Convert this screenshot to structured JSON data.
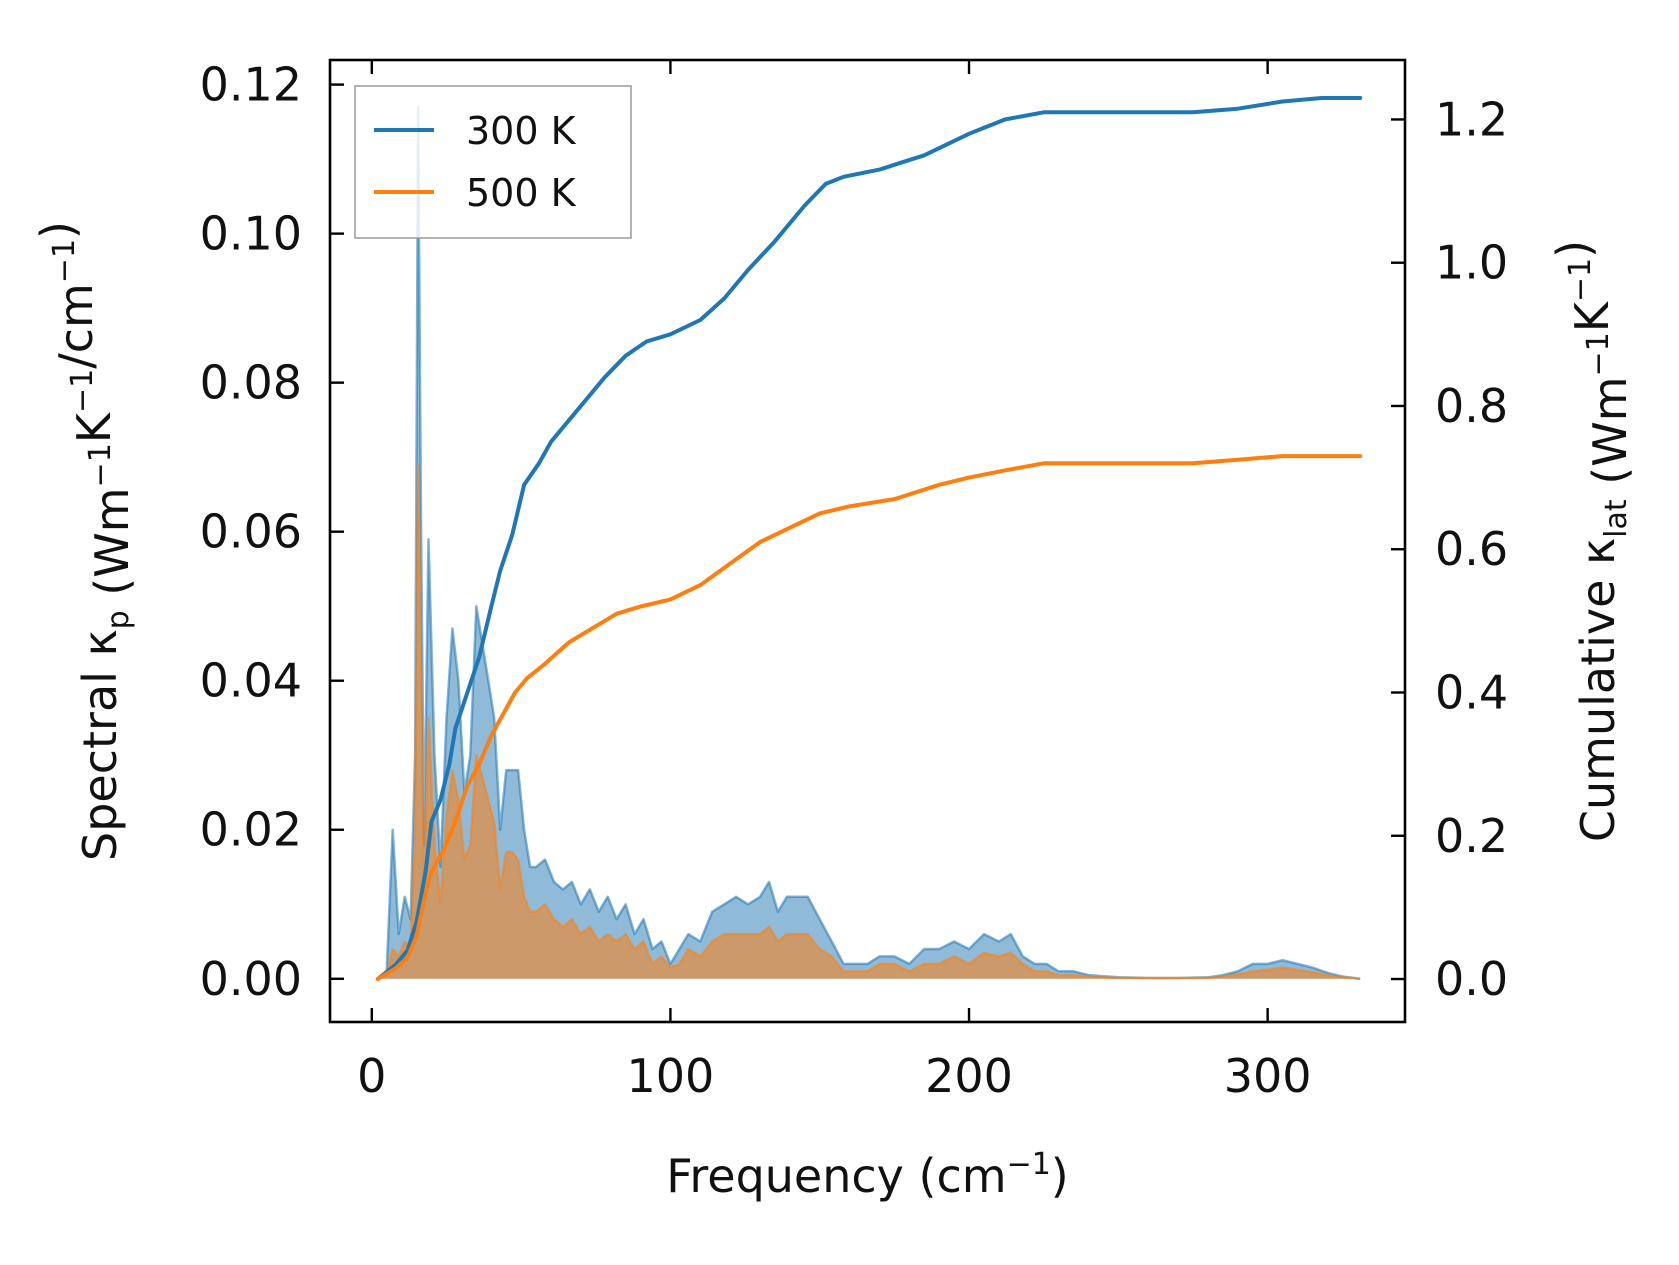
{
  "chart_data": {
    "type": "line",
    "xlabel": {
      "main": "Frequency (cm",
      "sup": "−1",
      "tail": ")"
    },
    "ylabel_left": [
      {
        "t": "Spectral κ"
      },
      {
        "t": "p",
        "sub": true
      },
      {
        "t": " (Wm"
      },
      {
        "t": "−1",
        "sup": true
      },
      {
        "t": "K"
      },
      {
        "t": "−1",
        "sup": true
      },
      {
        "t": "/cm"
      },
      {
        "t": "−1",
        "sup": true
      },
      {
        "t": ")"
      }
    ],
    "ylabel_right": [
      {
        "t": "Cumulative κ"
      },
      {
        "t": "lat",
        "sub": true
      },
      {
        "t": " (Wm"
      },
      {
        "t": "−1",
        "sup": true
      },
      {
        "t": "K"
      },
      {
        "t": "−1",
        "sup": true
      },
      {
        "t": ")"
      }
    ],
    "xlim": [
      -14,
      346
    ],
    "ylim_left": [
      -0.0058,
      0.1233
    ],
    "ylim_right": [
      -0.06,
      1.283
    ],
    "x_ticks": [
      0,
      100,
      200,
      300
    ],
    "x_tick_labels": [
      "0",
      "100",
      "200",
      "300"
    ],
    "y_left_ticks": [
      0,
      0.02,
      0.04,
      0.06,
      0.08,
      0.1,
      0.12
    ],
    "y_left_tick_labels": [
      "0.00",
      "0.02",
      "0.04",
      "0.06",
      "0.08",
      "0.10",
      "0.12"
    ],
    "y_right_ticks": [
      0,
      0.2,
      0.4,
      0.6,
      0.8,
      1.0,
      1.2
    ],
    "y_right_tick_labels": [
      "0.0",
      "0.2",
      "0.4",
      "0.6",
      "0.8",
      "1.0",
      "1.2"
    ],
    "legend_position": "top-left",
    "grid": false,
    "series": [
      {
        "name": "300 K",
        "color": "#1f77b4",
        "cumulative": [
          [
            2,
            0
          ],
          [
            8,
            0.02
          ],
          [
            12,
            0.04
          ],
          [
            15,
            0.08
          ],
          [
            18,
            0.15
          ],
          [
            20,
            0.22
          ],
          [
            23,
            0.25
          ],
          [
            26,
            0.3
          ],
          [
            28,
            0.35
          ],
          [
            32,
            0.4
          ],
          [
            36,
            0.45
          ],
          [
            40,
            0.52
          ],
          [
            43,
            0.57
          ],
          [
            47,
            0.62
          ],
          [
            51,
            0.69
          ],
          [
            56,
            0.72
          ],
          [
            60,
            0.75
          ],
          [
            66,
            0.78
          ],
          [
            72,
            0.81
          ],
          [
            78,
            0.84
          ],
          [
            85,
            0.87
          ],
          [
            92,
            0.89
          ],
          [
            100,
            0.9
          ],
          [
            110,
            0.92
          ],
          [
            118,
            0.95
          ],
          [
            126,
            0.99
          ],
          [
            135,
            1.03
          ],
          [
            145,
            1.08
          ],
          [
            152,
            1.11
          ],
          [
            158,
            1.12
          ],
          [
            170,
            1.13
          ],
          [
            185,
            1.15
          ],
          [
            200,
            1.18
          ],
          [
            212,
            1.2
          ],
          [
            225,
            1.21
          ],
          [
            250,
            1.21
          ],
          [
            275,
            1.21
          ],
          [
            290,
            1.215
          ],
          [
            305,
            1.225
          ],
          [
            318,
            1.23
          ],
          [
            331,
            1.23
          ]
        ],
        "spectral": [
          [
            2,
            0
          ],
          [
            5,
            0.001
          ],
          [
            7,
            0.02
          ],
          [
            9,
            0.006
          ],
          [
            11,
            0.011
          ],
          [
            13,
            0.008
          ],
          [
            14.5,
            0.03
          ],
          [
            15.5,
            0.117
          ],
          [
            16.5,
            0.06
          ],
          [
            17.5,
            0.018
          ],
          [
            19,
            0.059
          ],
          [
            21,
            0.03
          ],
          [
            23,
            0.015
          ],
          [
            25,
            0.035
          ],
          [
            27,
            0.047
          ],
          [
            29,
            0.04
          ],
          [
            31,
            0.025
          ],
          [
            33,
            0.03
          ],
          [
            35,
            0.05
          ],
          [
            37,
            0.045
          ],
          [
            39,
            0.04
          ],
          [
            41,
            0.035
          ],
          [
            43,
            0.02
          ],
          [
            45,
            0.028
          ],
          [
            47,
            0.028
          ],
          [
            49,
            0.028
          ],
          [
            51,
            0.02
          ],
          [
            53,
            0.015
          ],
          [
            55,
            0.015
          ],
          [
            58,
            0.016
          ],
          [
            61,
            0.013
          ],
          [
            64,
            0.012
          ],
          [
            67,
            0.013
          ],
          [
            70,
            0.01
          ],
          [
            73,
            0.012
          ],
          [
            76,
            0.009
          ],
          [
            79,
            0.011
          ],
          [
            82,
            0.008
          ],
          [
            85,
            0.01
          ],
          [
            88,
            0.006
          ],
          [
            91,
            0.008
          ],
          [
            94,
            0.004
          ],
          [
            97,
            0.005
          ],
          [
            100,
            0.002
          ],
          [
            103,
            0.004
          ],
          [
            106,
            0.006
          ],
          [
            110,
            0.005
          ],
          [
            114,
            0.009
          ],
          [
            118,
            0.01
          ],
          [
            122,
            0.011
          ],
          [
            126,
            0.01
          ],
          [
            130,
            0.011
          ],
          [
            133,
            0.013
          ],
          [
            136,
            0.009
          ],
          [
            139,
            0.011
          ],
          [
            142,
            0.011
          ],
          [
            146,
            0.011
          ],
          [
            150,
            0.008
          ],
          [
            154,
            0.005
          ],
          [
            158,
            0.002
          ],
          [
            162,
            0.002
          ],
          [
            166,
            0.002
          ],
          [
            170,
            0.003
          ],
          [
            175,
            0.003
          ],
          [
            180,
            0.002
          ],
          [
            185,
            0.004
          ],
          [
            190,
            0.004
          ],
          [
            195,
            0.005
          ],
          [
            200,
            0.004
          ],
          [
            205,
            0.006
          ],
          [
            210,
            0.005
          ],
          [
            214,
            0.006
          ],
          [
            218,
            0.003
          ],
          [
            222,
            0.002
          ],
          [
            226,
            0.002
          ],
          [
            230,
            0.001
          ],
          [
            235,
            0.001
          ],
          [
            240,
            0.0005
          ],
          [
            250,
            0.0002
          ],
          [
            260,
            0.0001
          ],
          [
            270,
            0.0001
          ],
          [
            280,
            0.0002
          ],
          [
            285,
            0.0005
          ],
          [
            290,
            0.001
          ],
          [
            295,
            0.002
          ],
          [
            300,
            0.002
          ],
          [
            305,
            0.0025
          ],
          [
            310,
            0.002
          ],
          [
            315,
            0.0015
          ],
          [
            320,
            0.0008
          ],
          [
            325,
            0.0003
          ],
          [
            331,
            0
          ]
        ]
      },
      {
        "name": "500 K",
        "color": "#ff7f0e",
        "cumulative": [
          [
            2,
            0
          ],
          [
            8,
            0.015
          ],
          [
            12,
            0.03
          ],
          [
            15,
            0.06
          ],
          [
            18,
            0.12
          ],
          [
            20,
            0.15
          ],
          [
            24,
            0.18
          ],
          [
            28,
            0.22
          ],
          [
            32,
            0.27
          ],
          [
            36,
            0.3
          ],
          [
            40,
            0.34
          ],
          [
            44,
            0.37
          ],
          [
            48,
            0.4
          ],
          [
            52,
            0.42
          ],
          [
            58,
            0.44
          ],
          [
            66,
            0.47
          ],
          [
            74,
            0.49
          ],
          [
            82,
            0.51
          ],
          [
            90,
            0.52
          ],
          [
            100,
            0.53
          ],
          [
            110,
            0.55
          ],
          [
            120,
            0.58
          ],
          [
            130,
            0.61
          ],
          [
            140,
            0.63
          ],
          [
            150,
            0.65
          ],
          [
            160,
            0.66
          ],
          [
            175,
            0.67
          ],
          [
            190,
            0.69
          ],
          [
            200,
            0.7
          ],
          [
            212,
            0.71
          ],
          [
            225,
            0.72
          ],
          [
            250,
            0.72
          ],
          [
            275,
            0.72
          ],
          [
            290,
            0.725
          ],
          [
            305,
            0.73
          ],
          [
            318,
            0.73
          ],
          [
            331,
            0.73
          ]
        ],
        "spectral": [
          [
            2,
            0
          ],
          [
            5,
            0.0005
          ],
          [
            7,
            0.004
          ],
          [
            9,
            0.003
          ],
          [
            11,
            0.005
          ],
          [
            13,
            0.004
          ],
          [
            14.5,
            0.02
          ],
          [
            15.5,
            0.069
          ],
          [
            16.5,
            0.04
          ],
          [
            17.5,
            0.012
          ],
          [
            19,
            0.035
          ],
          [
            21,
            0.018
          ],
          [
            23,
            0.01
          ],
          [
            25,
            0.022
          ],
          [
            27,
            0.028
          ],
          [
            29,
            0.024
          ],
          [
            31,
            0.016
          ],
          [
            33,
            0.018
          ],
          [
            35,
            0.03
          ],
          [
            37,
            0.027
          ],
          [
            39,
            0.024
          ],
          [
            41,
            0.021
          ],
          [
            43,
            0.012
          ],
          [
            45,
            0.017
          ],
          [
            47,
            0.017
          ],
          [
            49,
            0.016
          ],
          [
            51,
            0.011
          ],
          [
            53,
            0.009
          ],
          [
            55,
            0.009
          ],
          [
            58,
            0.01
          ],
          [
            61,
            0.008
          ],
          [
            64,
            0.007
          ],
          [
            67,
            0.008
          ],
          [
            70,
            0.006
          ],
          [
            73,
            0.007
          ],
          [
            76,
            0.005
          ],
          [
            79,
            0.006
          ],
          [
            82,
            0.005
          ],
          [
            85,
            0.006
          ],
          [
            88,
            0.004
          ],
          [
            91,
            0.005
          ],
          [
            94,
            0.002
          ],
          [
            97,
            0.003
          ],
          [
            100,
            0.0015
          ],
          [
            103,
            0.002
          ],
          [
            106,
            0.004
          ],
          [
            110,
            0.003
          ],
          [
            114,
            0.005
          ],
          [
            118,
            0.006
          ],
          [
            122,
            0.006
          ],
          [
            126,
            0.006
          ],
          [
            130,
            0.006
          ],
          [
            133,
            0.007
          ],
          [
            136,
            0.005
          ],
          [
            139,
            0.006
          ],
          [
            142,
            0.006
          ],
          [
            146,
            0.006
          ],
          [
            150,
            0.004
          ],
          [
            154,
            0.003
          ],
          [
            158,
            0.001
          ],
          [
            162,
            0.001
          ],
          [
            166,
            0.001
          ],
          [
            170,
            0.002
          ],
          [
            175,
            0.002
          ],
          [
            180,
            0.001
          ],
          [
            185,
            0.002
          ],
          [
            190,
            0.002
          ],
          [
            195,
            0.003
          ],
          [
            200,
            0.002
          ],
          [
            205,
            0.0035
          ],
          [
            210,
            0.003
          ],
          [
            214,
            0.0035
          ],
          [
            218,
            0.002
          ],
          [
            222,
            0.001
          ],
          [
            226,
            0.001
          ],
          [
            230,
            0.0005
          ],
          [
            235,
            0.0005
          ],
          [
            240,
            0.0003
          ],
          [
            250,
            0.0001
          ],
          [
            260,
            0.0001
          ],
          [
            270,
            0.0001
          ],
          [
            280,
            0.0001
          ],
          [
            285,
            0.0003
          ],
          [
            290,
            0.0006
          ],
          [
            295,
            0.001
          ],
          [
            300,
            0.0012
          ],
          [
            305,
            0.0015
          ],
          [
            310,
            0.0012
          ],
          [
            315,
            0.0009
          ],
          [
            320,
            0.0005
          ],
          [
            325,
            0.0002
          ],
          [
            331,
            0
          ]
        ]
      }
    ]
  }
}
